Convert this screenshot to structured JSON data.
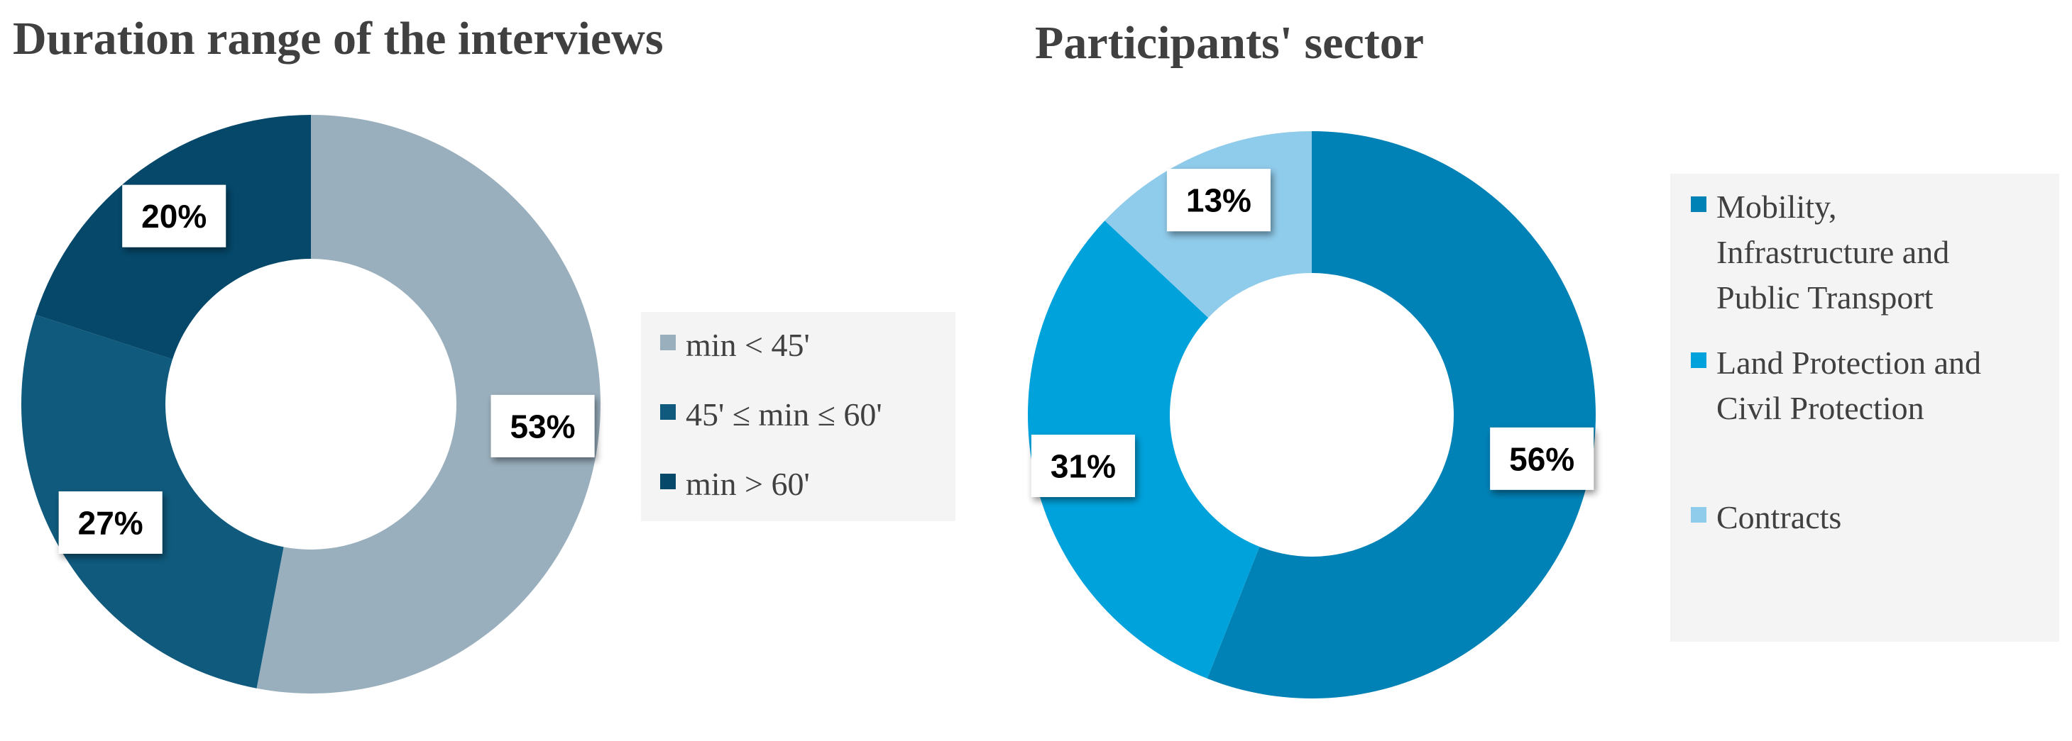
{
  "chart_data": [
    {
      "type": "pie",
      "title": "Duration range of the interviews",
      "categories": [
        "min < 45'",
        "45' ≤ min ≤ 60'",
        "min > 60'"
      ],
      "values": [
        53,
        27,
        20
      ],
      "labels": [
        "53%",
        "27%",
        "20%"
      ],
      "colors": [
        "#9aafbd",
        "#0f5a7d",
        "#05486a"
      ],
      "legend": "right"
    },
    {
      "type": "pie",
      "title": "Participants' sector",
      "categories": [
        "Mobility, Infrastructure and Public Transport",
        "Land Protection and Civil Protection",
        "Contracts"
      ],
      "legend_lines": [
        [
          "Mobility,",
          "Infrastructure and",
          "Public Transport"
        ],
        [
          "Land Protection and",
          "Civil Protection"
        ],
        [
          "Contracts"
        ]
      ],
      "values": [
        56,
        31,
        13
      ],
      "labels": [
        "56%",
        "31%",
        "13%"
      ],
      "colors": [
        "#0082b6",
        "#00a2dc",
        "#8fcbea"
      ],
      "legend": "right"
    }
  ]
}
